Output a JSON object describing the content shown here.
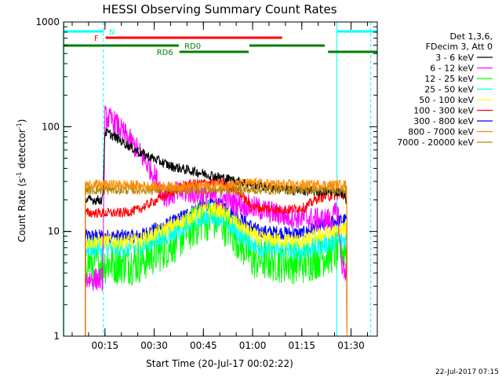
{
  "chart_data": {
    "type": "line",
    "title": "HESSI Observing Summary Count Rates",
    "xlabel": "Start Time (20-Jul-17 00:02:22)",
    "ylabel_main": "Count Rate (s",
    "ylabel_exp1": "-1",
    "ylabel_mid": " detector",
    "ylabel_exp2": "-1",
    "ylabel_end": ")",
    "yscale": "log",
    "ylim": [
      1,
      1000
    ],
    "xlim_minutes": [
      2.37,
      98
    ],
    "x_ticks": [
      {
        "value": 15,
        "label": "00:15"
      },
      {
        "value": 30,
        "label": "00:30"
      },
      {
        "value": 45,
        "label": "00:45"
      },
      {
        "value": 60,
        "label": "01:00"
      },
      {
        "value": 75,
        "label": "01:15"
      },
      {
        "value": 90,
        "label": "01:30"
      }
    ],
    "y_ticks": [
      {
        "value": 1,
        "label": "1"
      },
      {
        "value": 10,
        "label": "10"
      },
      {
        "value": 100,
        "label": "100"
      },
      {
        "value": 1000,
        "label": "1000"
      }
    ],
    "legend": {
      "header1": "Det 1,3,6,",
      "header2": "FDecim 3, Att 0",
      "placement": "right"
    },
    "series": [
      {
        "name": "3 - 6 keV",
        "color": "#000000",
        "noise": 0.05,
        "points": [
          [
            9,
            20
          ],
          [
            13,
            20
          ],
          [
            14.3,
            20
          ],
          [
            15,
            90
          ],
          [
            18,
            80
          ],
          [
            25,
            58
          ],
          [
            35,
            42
          ],
          [
            50,
            33
          ],
          [
            60,
            28
          ],
          [
            70,
            25
          ],
          [
            80,
            24
          ],
          [
            87,
            24
          ],
          [
            88.8,
            20
          ]
        ]
      },
      {
        "name": "6 - 12 keV",
        "color": "#ff00ff",
        "noise": 0.12,
        "points": [
          [
            9,
            3.5
          ],
          [
            13,
            3.5
          ],
          [
            14.3,
            3.5
          ],
          [
            15,
            125
          ],
          [
            18,
            110
          ],
          [
            25,
            60
          ],
          [
            30,
            35
          ],
          [
            33,
            22
          ],
          [
            40,
            24
          ],
          [
            50,
            21
          ],
          [
            60,
            17
          ],
          [
            70,
            14
          ],
          [
            80,
            13
          ],
          [
            84,
            13
          ],
          [
            86,
            16
          ],
          [
            87,
            5
          ],
          [
            88.8,
            4
          ]
        ]
      },
      {
        "name": "12 - 25 keV",
        "color": "#00ff00",
        "noise": 0.22,
        "points": [
          [
            9,
            5
          ],
          [
            25,
            5
          ],
          [
            35,
            7.5
          ],
          [
            45,
            13
          ],
          [
            50,
            13
          ],
          [
            55,
            9
          ],
          [
            60,
            5.5
          ],
          [
            75,
            5
          ],
          [
            82,
            6
          ],
          [
            88.8,
            7
          ]
        ]
      },
      {
        "name": "25 - 50 keV",
        "color": "#00ffff",
        "noise": 0.1,
        "points": [
          [
            9,
            7
          ],
          [
            25,
            7
          ],
          [
            35,
            9.5
          ],
          [
            45,
            14
          ],
          [
            50,
            14
          ],
          [
            55,
            10
          ],
          [
            62,
            7
          ],
          [
            75,
            6.5
          ],
          [
            82,
            7.5
          ],
          [
            88.8,
            8.5
          ]
        ]
      },
      {
        "name": "50 - 100 keV",
        "color": "#ffff00",
        "noise": 0.08,
        "points": [
          [
            9,
            8
          ],
          [
            25,
            8
          ],
          [
            35,
            11
          ],
          [
            45,
            16
          ],
          [
            50,
            16
          ],
          [
            55,
            12
          ],
          [
            62,
            8.5
          ],
          [
            75,
            8
          ],
          [
            82,
            9.5
          ],
          [
            88.8,
            10.5
          ]
        ]
      },
      {
        "name": "100 - 300 keV",
        "color": "#ff0000",
        "noise": 0.05,
        "points": [
          [
            9,
            15
          ],
          [
            20,
            15
          ],
          [
            25,
            16
          ],
          [
            32,
            21
          ],
          [
            40,
            28
          ],
          [
            50,
            30
          ],
          [
            55,
            25
          ],
          [
            60,
            17
          ],
          [
            70,
            16
          ],
          [
            76,
            17
          ],
          [
            80,
            21
          ],
          [
            84,
            22
          ],
          [
            88.8,
            22
          ]
        ]
      },
      {
        "name": "300 - 800 keV",
        "color": "#0000ff",
        "noise": 0.07,
        "points": [
          [
            9,
            9
          ],
          [
            25,
            9
          ],
          [
            35,
            12
          ],
          [
            45,
            18
          ],
          [
            50,
            18
          ],
          [
            55,
            14
          ],
          [
            62,
            10
          ],
          [
            75,
            9.5
          ],
          [
            82,
            12
          ],
          [
            88.8,
            13
          ]
        ]
      },
      {
        "name": "800 - 7000 keV",
        "color": "#ff8c00",
        "noise": 0.05,
        "points": [
          [
            9,
            28
          ],
          [
            20,
            28
          ],
          [
            30,
            27
          ],
          [
            40,
            27
          ],
          [
            50,
            28
          ],
          [
            60,
            29
          ],
          [
            70,
            28
          ],
          [
            80,
            28
          ],
          [
            88.8,
            28
          ]
        ]
      },
      {
        "name": "7000 - 20000 keV",
        "color": "#b8860b",
        "noise": 0.05,
        "points": [
          [
            9,
            25
          ],
          [
            50,
            25
          ],
          [
            88.8,
            25
          ]
        ]
      }
    ],
    "flag_bars": [
      {
        "label": "N",
        "color": "#00ffff",
        "y": 40,
        "segments": [
          [
            0,
            14.6
          ],
          [
            85.8,
            98
          ]
        ],
        "label_at": 15.5,
        "label_side": "right"
      },
      {
        "label": "F",
        "color": "#ff0000",
        "y": 48,
        "segments": [
          [
            15.2,
            69
          ]
        ],
        "label_at": 13.8,
        "label_side": "left"
      },
      {
        "label": "RD0",
        "color": "#008000",
        "y": 58,
        "segments": [
          [
            0,
            37.5
          ],
          [
            59,
            82
          ]
        ],
        "label_at": 38.5,
        "label_side": "right"
      },
      {
        "label": "RD6",
        "color": "#008000",
        "y": 66,
        "segments": [
          [
            37.7,
            58.8
          ],
          [
            83,
            98
          ]
        ],
        "label_at": 36.5,
        "label_side": "left"
      }
    ],
    "vlines": [
      {
        "x": 14.5,
        "color": "#00ffff",
        "style": "dashed"
      },
      {
        "x": 85.7,
        "color": "#00ffff",
        "style": "solid"
      },
      {
        "x": 96,
        "color": "#00ffff",
        "style": "dashed"
      },
      {
        "x": 2.5,
        "color": "#00ffff",
        "style": "solid"
      }
    ]
  },
  "footer": {
    "timestamp": "22-Jul-2017 07:15"
  }
}
